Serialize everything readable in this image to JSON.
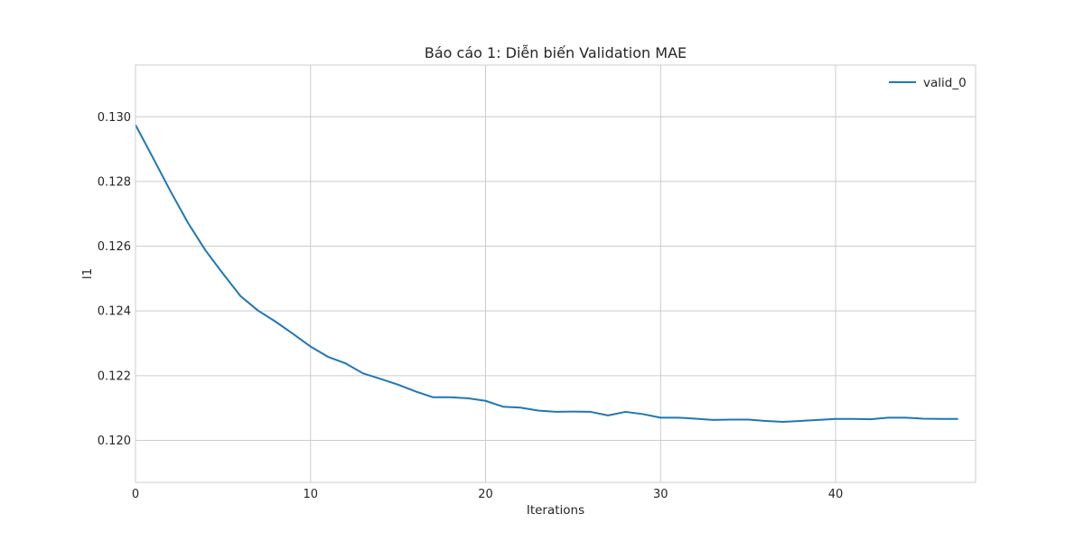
{
  "chart_data": {
    "type": "line",
    "title": "Báo cáo 1: Diễn biến Validation MAE",
    "xlabel": "Iterations",
    "ylabel": "l1",
    "xlim": [
      0,
      48
    ],
    "ylim": [
      0.1187,
      0.1316
    ],
    "xticks": [
      0,
      10,
      20,
      30,
      40
    ],
    "xtick_labels": [
      "0",
      "10",
      "20",
      "30",
      "40"
    ],
    "yticks": [
      0.12,
      0.122,
      0.124,
      0.126,
      0.128,
      0.13
    ],
    "ytick_labels": [
      "0.120",
      "0.122",
      "0.124",
      "0.126",
      "0.128",
      "0.130"
    ],
    "grid": true,
    "legend_position": "top-right",
    "line_color": "#1f77b4",
    "grid_color": "#cccccc",
    "series": [
      {
        "name": "valid_0",
        "x": [
          0,
          1,
          2,
          3,
          4,
          5,
          6,
          7,
          8,
          9,
          10,
          11,
          12,
          13,
          14,
          15,
          16,
          17,
          18,
          19,
          20,
          21,
          22,
          23,
          24,
          25,
          26,
          27,
          28,
          29,
          30,
          31,
          32,
          33,
          34,
          35,
          36,
          37,
          38,
          39,
          40,
          41,
          42,
          43,
          44,
          45,
          46,
          47
        ],
        "y": [
          0.12975,
          0.12873,
          0.1277,
          0.12672,
          0.12587,
          0.12515,
          0.12446,
          0.12401,
          0.12367,
          0.12329,
          0.1229,
          0.12258,
          0.12238,
          0.12207,
          0.1219,
          0.12172,
          0.12151,
          0.12133,
          0.12133,
          0.1213,
          0.12122,
          0.12104,
          0.12101,
          0.12092,
          0.12088,
          0.12089,
          0.12088,
          0.12077,
          0.12088,
          0.12081,
          0.1207,
          0.1207,
          0.12067,
          0.12063,
          0.12064,
          0.12064,
          0.1206,
          0.12057,
          0.1206,
          0.12063,
          0.12066,
          0.12066,
          0.12065,
          0.1207,
          0.1207,
          0.12067,
          0.12066,
          0.12066
        ]
      }
    ]
  }
}
